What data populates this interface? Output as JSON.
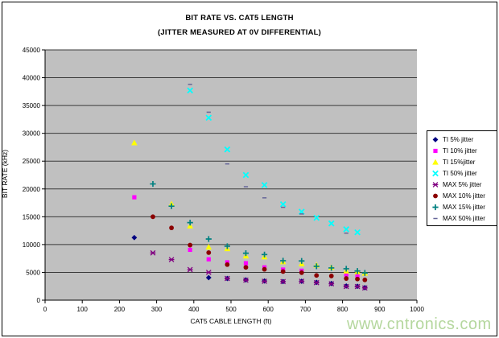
{
  "watermark": "www.cntronics.com",
  "chart_data": {
    "type": "scatter",
    "title": "BIT RATE VS. CAT5 LENGTH",
    "subtitle": "(JITTER MEASURED AT 0V DIFFERENTIAL)",
    "xlabel": "CAT5 CABLE LENGTH (ft)",
    "ylabel": "BIT RATE (kHz)",
    "xlim": [
      0,
      1000
    ],
    "ylim": [
      0,
      45000
    ],
    "x_ticks": [
      0,
      100,
      200,
      300,
      400,
      500,
      600,
      700,
      800,
      900,
      1000
    ],
    "y_ticks": [
      0,
      5000,
      10000,
      15000,
      20000,
      25000,
      30000,
      35000,
      40000,
      45000
    ],
    "grid": "horizontal",
    "plot_bg_color": "#c0c0c0",
    "gridline_color": "#3a3a3a",
    "legend_position": "right",
    "series": [
      {
        "name": "TI 5% jitter",
        "marker": "diamond",
        "color": "#000080",
        "points": [
          [
            240,
            11250
          ],
          [
            440,
            4050
          ],
          [
            490,
            3900
          ],
          [
            540,
            3650
          ],
          [
            590,
            3450
          ],
          [
            640,
            3350
          ],
          [
            690,
            3400
          ],
          [
            730,
            3200
          ],
          [
            770,
            3000
          ],
          [
            810,
            2550
          ],
          [
            840,
            2500
          ],
          [
            860,
            2250
          ]
        ]
      },
      {
        "name": "TI 10% jitter",
        "marker": "square",
        "color": "#ff00ff",
        "points": [
          [
            240,
            18500
          ],
          [
            390,
            9050
          ],
          [
            440,
            7350
          ],
          [
            490,
            6800
          ],
          [
            540,
            6650
          ],
          [
            590,
            5900
          ],
          [
            640,
            5500
          ],
          [
            690,
            5300
          ],
          [
            810,
            4600
          ],
          [
            840,
            4450
          ]
        ]
      },
      {
        "name": "TI 15%jitter",
        "marker": "triangle",
        "color": "#ffff00",
        "points": [
          [
            240,
            28300
          ],
          [
            340,
            17300
          ],
          [
            390,
            13350
          ],
          [
            440,
            9550
          ],
          [
            490,
            9250
          ],
          [
            540,
            7950
          ],
          [
            590,
            7800
          ],
          [
            640,
            6900
          ],
          [
            690,
            6550
          ],
          [
            730,
            6300
          ],
          [
            770,
            5900
          ],
          [
            810,
            5250
          ],
          [
            840,
            5100
          ],
          [
            860,
            4850
          ]
        ]
      },
      {
        "name": "TI 50% jitter",
        "marker": "x",
        "color": "#00ffff",
        "points": [
          [
            390,
            37700
          ],
          [
            440,
            32800
          ],
          [
            490,
            27100
          ],
          [
            540,
            22500
          ],
          [
            590,
            20700
          ],
          [
            640,
            17250
          ],
          [
            690,
            15900
          ],
          [
            730,
            14800
          ],
          [
            770,
            13800
          ],
          [
            810,
            12750
          ],
          [
            840,
            12200
          ]
        ]
      },
      {
        "name": "MAX 5% jitter",
        "marker": "star",
        "color": "#800080",
        "points": [
          [
            290,
            8500
          ],
          [
            340,
            7300
          ],
          [
            390,
            5500
          ],
          [
            440,
            5000
          ],
          [
            490,
            3900
          ],
          [
            540,
            3600
          ],
          [
            590,
            3400
          ],
          [
            640,
            3350
          ],
          [
            690,
            3400
          ],
          [
            730,
            3150
          ],
          [
            770,
            2950
          ],
          [
            810,
            2450
          ],
          [
            840,
            2450
          ],
          [
            860,
            2200
          ]
        ]
      },
      {
        "name": "MAX 10% jitter",
        "marker": "circle",
        "color": "#8b0000",
        "points": [
          [
            290,
            15000
          ],
          [
            340,
            13000
          ],
          [
            390,
            9900
          ],
          [
            440,
            8550
          ],
          [
            490,
            6400
          ],
          [
            540,
            5900
          ],
          [
            590,
            5550
          ],
          [
            640,
            5150
          ],
          [
            690,
            4950
          ],
          [
            730,
            4450
          ],
          [
            770,
            4350
          ],
          [
            810,
            3900
          ],
          [
            840,
            3800
          ],
          [
            860,
            3650
          ]
        ]
      },
      {
        "name": "MAX 15% jitter",
        "marker": "plus",
        "color": "#008080",
        "points": [
          [
            290,
            20900
          ],
          [
            340,
            16900
          ],
          [
            390,
            13950
          ],
          [
            440,
            11000
          ],
          [
            490,
            9700
          ],
          [
            540,
            8450
          ],
          [
            590,
            8200
          ],
          [
            640,
            7100
          ],
          [
            690,
            7050
          ],
          [
            730,
            6100
          ],
          [
            770,
            5800
          ],
          [
            810,
            5650
          ],
          [
            840,
            5250
          ],
          [
            860,
            4900
          ]
        ]
      },
      {
        "name": "MAX 50% jitter",
        "marker": "dash",
        "color": "#666699",
        "points": [
          [
            390,
            38800
          ],
          [
            440,
            33800
          ],
          [
            490,
            24500
          ],
          [
            540,
            20400
          ],
          [
            590,
            18400
          ],
          [
            640,
            16700
          ],
          [
            690,
            15500
          ],
          [
            810,
            12050
          ]
        ]
      }
    ]
  }
}
